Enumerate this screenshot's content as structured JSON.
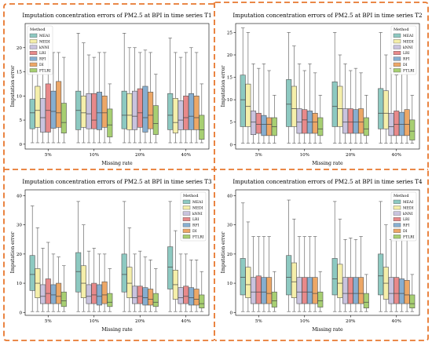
{
  "colors": {
    "MEAI": "#8dc9c1",
    "MEDI": "#f5efaa",
    "kNNI": "#c9c3de",
    "LRI": "#e8898a",
    "RFI": "#86aed0",
    "DI": "#eda766",
    "FTLRI": "#a7cf72",
    "frame": "#e8772e"
  },
  "chart_data": [
    {
      "type": "box",
      "title": "Imputation concentration errors of PM2.5 at BPI in time series T1",
      "xlabel": "Missing rate",
      "ylabel": "Imputation error",
      "categories": [
        "5%",
        "10%",
        "20%",
        "40%"
      ],
      "ylim": [
        -1,
        25
      ],
      "yticks": [
        0,
        5,
        10,
        15,
        20
      ],
      "legend": {
        "title": "Method",
        "position": "top-left"
      },
      "series": [
        {
          "name": "MEAI",
          "boxes": [
            [
              0.3,
              3.2,
              6.5,
              9.3,
              21
            ],
            [
              0.3,
              3,
              7,
              11,
              23
            ],
            [
              0.3,
              3.2,
              6,
              11,
              23
            ],
            [
              0.3,
              3,
              6,
              10.5,
              22
            ]
          ]
        },
        {
          "name": "MEDI",
          "boxes": [
            [
              0.3,
              3.5,
              7,
              12,
              23
            ],
            [
              0.3,
              3.5,
              6.5,
              10,
              21
            ],
            [
              0.3,
              3,
              6,
              10.5,
              20
            ],
            [
              0.3,
              2.3,
              4.5,
              9.5,
              19
            ]
          ]
        },
        {
          "name": "kNNI",
          "boxes": [
            [
              0.3,
              2.5,
              5.5,
              9.5,
              18
            ],
            [
              0.3,
              3.2,
              6.3,
              10.5,
              18.5
            ],
            [
              0.3,
              3,
              5.8,
              11,
              20
            ],
            [
              0.3,
              3,
              5,
              9,
              18
            ]
          ]
        },
        {
          "name": "LRI",
          "boxes": [
            [
              0.3,
              2.5,
              7,
              12.5,
              21
            ],
            [
              0.3,
              3.2,
              5,
              10.5,
              18
            ],
            [
              0.3,
              3.5,
              6.5,
              11.5,
              19
            ],
            [
              0.3,
              3,
              5.5,
              10,
              19
            ]
          ]
        },
        {
          "name": "RFI",
          "boxes": [
            [
              0.3,
              3.3,
              6.8,
              11,
              19
            ],
            [
              0.3,
              3,
              6.5,
              10.8,
              19
            ],
            [
              0.3,
              2.5,
              5.5,
              12,
              19.5
            ],
            [
              0.3,
              3,
              5.8,
              10.5,
              20
            ]
          ]
        },
        {
          "name": "DI",
          "boxes": [
            [
              0.3,
              3.5,
              6.5,
              13,
              19
            ],
            [
              0.3,
              3.5,
              6.5,
              10,
              19
            ],
            [
              0.3,
              3.2,
              6,
              10.8,
              19
            ],
            [
              0.3,
              3,
              5.5,
              10,
              19
            ]
          ]
        },
        {
          "name": "FTLRI",
          "boxes": [
            [
              0.3,
              2.3,
              4.5,
              8.5,
              18
            ],
            [
              0.3,
              1.5,
              4,
              7.3,
              12.5
            ],
            [
              0.3,
              2,
              4.3,
              8,
              14.5
            ],
            [
              0.3,
              1,
              3,
              6,
              12.5
            ]
          ]
        }
      ]
    },
    {
      "type": "box",
      "title": "Imputation concentration errors of PM2.5 at BPI in time series T2",
      "xlabel": "Missing rate",
      "ylabel": "Imputation error",
      "categories": [
        "5%",
        "10%",
        "20%",
        "40%"
      ],
      "ylim": [
        -1,
        27
      ],
      "yticks": [
        0,
        5,
        10,
        15,
        20,
        25
      ],
      "legend": {
        "title": "Method",
        "position": "top-right"
      },
      "series": [
        {
          "name": "MEAI",
          "boxes": [
            [
              0.3,
              4,
              10,
              15.5,
              26
            ],
            [
              0.3,
              4,
              9,
              14.5,
              25
            ],
            [
              0.3,
              4,
              8.5,
              14,
              25
            ],
            [
              0.3,
              3.5,
              7,
              12.5,
              25
            ]
          ]
        },
        {
          "name": "MEDI",
          "boxes": [
            [
              0.3,
              4,
              8.5,
              13.5,
              25
            ],
            [
              0.3,
              4,
              8,
              13,
              22
            ],
            [
              0.3,
              4,
              8,
              13,
              20
            ],
            [
              0.3,
              3.5,
              7,
              12,
              20
            ]
          ]
        },
        {
          "name": "kNNI",
          "boxes": [
            [
              0.3,
              2.2,
              5,
              7.5,
              18
            ],
            [
              0.3,
              2.5,
              5,
              8,
              18
            ],
            [
              0.3,
              2.5,
              5,
              8,
              18
            ],
            [
              0.3,
              2,
              4,
              7,
              17
            ]
          ]
        },
        {
          "name": "LRI",
          "boxes": [
            [
              0.3,
              2.5,
              4.5,
              7,
              17
            ],
            [
              0.3,
              2.5,
              5.5,
              7.8,
              16.5
            ],
            [
              0.3,
              2.5,
              5,
              8,
              16.5
            ],
            [
              0.3,
              2,
              4.5,
              7.5,
              15.5
            ]
          ]
        },
        {
          "name": "RFI",
          "boxes": [
            [
              0.3,
              2,
              4.5,
              6.5,
              18
            ],
            [
              0.3,
              2.5,
              5,
              7.5,
              18
            ],
            [
              0.3,
              2.5,
              5,
              7.8,
              17
            ],
            [
              0.3,
              2,
              4.5,
              7.2,
              17
            ]
          ]
        },
        {
          "name": "DI",
          "boxes": [
            [
              0.3,
              2,
              4.5,
              6,
              16.5
            ],
            [
              0.3,
              2.5,
              5,
              7,
              16
            ],
            [
              0.3,
              2.5,
              5,
              8,
              16
            ],
            [
              0.3,
              2,
              4.5,
              7.8,
              16
            ]
          ]
        },
        {
          "name": "FTLRI",
          "boxes": [
            [
              0.3,
              2,
              4,
              6,
              11
            ],
            [
              0.3,
              2,
              3.5,
              6,
              11
            ],
            [
              0.3,
              2,
              3.5,
              6,
              11
            ],
            [
              0.3,
              1,
              3,
              5.5,
              11
            ]
          ]
        }
      ]
    },
    {
      "type": "box",
      "title": "Imputation concentration errors of PM2.5 at BPI in time series T3",
      "xlabel": "Missing rate",
      "ylabel": "Imputation error",
      "categories": [
        "5%",
        "10%",
        "20%",
        "40%"
      ],
      "ylim": [
        -1,
        42
      ],
      "yticks": [
        0,
        10,
        20,
        30,
        40
      ],
      "legend": {
        "title": "Method",
        "position": "top-right"
      },
      "series": [
        {
          "name": "MEAI",
          "boxes": [
            [
              0.3,
              7.5,
              13,
              19.5,
              36.5
            ],
            [
              0.3,
              7,
              14,
              20.5,
              38
            ],
            [
              0.3,
              7,
              13,
              20,
              38
            ],
            [
              0.3,
              8,
              15.5,
              22.5,
              38
            ]
          ]
        },
        {
          "name": "MEDI",
          "boxes": [
            [
              0.3,
              5,
              10,
              15,
              29
            ],
            [
              0.3,
              5,
              10,
              16,
              30
            ],
            [
              0.3,
              5,
              10,
              15.5,
              29
            ],
            [
              0.3,
              4.5,
              9.5,
              14.5,
              28
            ]
          ]
        },
        {
          "name": "kNNI",
          "boxes": [
            [
              0.3,
              3,
              5.5,
              9.5,
              22
            ],
            [
              0.3,
              3,
              5.5,
              9.5,
              21
            ],
            [
              0.3,
              3,
              5,
              9,
              20
            ],
            [
              0.3,
              3,
              5,
              8.5,
              20
            ]
          ]
        },
        {
          "name": "LRI",
          "boxes": [
            [
              0.3,
              3,
              6.5,
              11.5,
              24
            ],
            [
              0.3,
              3,
              6,
              10,
              22
            ],
            [
              0.3,
              3,
              5.5,
              9,
              21
            ],
            [
              0.3,
              3,
              5.5,
              9,
              20
            ]
          ]
        },
        {
          "name": "RFI",
          "boxes": [
            [
              0.3,
              3,
              6,
              9.5,
              20
            ],
            [
              0.3,
              2.5,
              5.5,
              9.5,
              20
            ],
            [
              0.3,
              2.5,
              5,
              8.5,
              19
            ],
            [
              0.3,
              2.5,
              5,
              8.5,
              18
            ]
          ]
        },
        {
          "name": "DI",
          "boxes": [
            [
              0.3,
              3,
              5.5,
              10,
              19
            ],
            [
              0.3,
              3,
              6,
              10.5,
              20
            ],
            [
              0.3,
              2.5,
              4.5,
              8,
              18
            ],
            [
              0.3,
              2.5,
              4.5,
              8,
              18
            ]
          ]
        },
        {
          "name": "FTLRI",
          "boxes": [
            [
              0.3,
              2,
              4,
              7,
              16
            ],
            [
              0.3,
              2,
              3.5,
              6.5,
              15
            ],
            [
              0.3,
              2,
              3.5,
              6.5,
              15
            ],
            [
              0.3,
              1.5,
              3,
              6,
              14
            ]
          ]
        }
      ]
    },
    {
      "type": "box",
      "title": "Imputation concentration errors of PM2.5 at BPI in time series T4",
      "xlabel": "Missing rate",
      "ylabel": "Imputation error",
      "categories": [
        "5%",
        "10%",
        "20%",
        "40%"
      ],
      "ylim": [
        -1,
        42
      ],
      "yticks": [
        0,
        10,
        20,
        30,
        40
      ],
      "legend": {
        "title": "Method",
        "position": "top-right"
      },
      "series": [
        {
          "name": "MEAI",
          "boxes": [
            [
              0.3,
              6,
              12,
              18.5,
              37.5
            ],
            [
              0.3,
              6,
              12,
              19.5,
              38.5
            ],
            [
              0.3,
              6,
              11.5,
              18.5,
              38
            ],
            [
              0.3,
              6,
              12.5,
              20,
              38
            ]
          ]
        },
        {
          "name": "MEDI",
          "boxes": [
            [
              0.3,
              5,
              9.5,
              15.5,
              31
            ],
            [
              0.3,
              5,
              10.5,
              17,
              32
            ],
            [
              0.3,
              5,
              10,
              16.5,
              32
            ],
            [
              0.3,
              4.5,
              10,
              15.5,
              30
            ]
          ]
        },
        {
          "name": "kNNI",
          "boxes": [
            [
              0.3,
              3,
              7,
              12,
              26
            ],
            [
              0.3,
              3,
              7,
              12,
              26
            ],
            [
              0.3,
              3,
              6.5,
              12,
              25
            ],
            [
              0.3,
              3,
              6.5,
              12,
              25
            ]
          ]
        },
        {
          "name": "LRI",
          "boxes": [
            [
              0.3,
              3,
              7,
              12.5,
              26
            ],
            [
              0.3,
              3,
              7,
              12,
              26
            ],
            [
              0.3,
              3,
              6.5,
              12,
              25.5
            ],
            [
              0.3,
              3,
              6.5,
              12,
              25
            ]
          ]
        },
        {
          "name": "RFI",
          "boxes": [
            [
              0.3,
              3,
              7,
              12,
              26
            ],
            [
              0.3,
              3,
              7,
              12,
              26
            ],
            [
              0.3,
              3,
              6.5,
              12,
              25
            ],
            [
              0.3,
              3,
              6.5,
              11.5,
              25
            ]
          ]
        },
        {
          "name": "DI",
          "boxes": [
            [
              0.3,
              3,
              6.5,
              12,
              26
            ],
            [
              0.3,
              3,
              6.5,
              12,
              26
            ],
            [
              0.3,
              3,
              6.5,
              12,
              26
            ],
            [
              0.3,
              3,
              6,
              11,
              26
            ]
          ]
        },
        {
          "name": "FTLRI",
          "boxes": [
            [
              0.3,
              1.8,
              4,
              7,
              14
            ],
            [
              0.3,
              1.8,
              4,
              7,
              14
            ],
            [
              0.3,
              1.5,
              3.5,
              6.5,
              13
            ],
            [
              0.3,
              1.5,
              3,
              6,
              13
            ]
          ]
        }
      ]
    }
  ]
}
